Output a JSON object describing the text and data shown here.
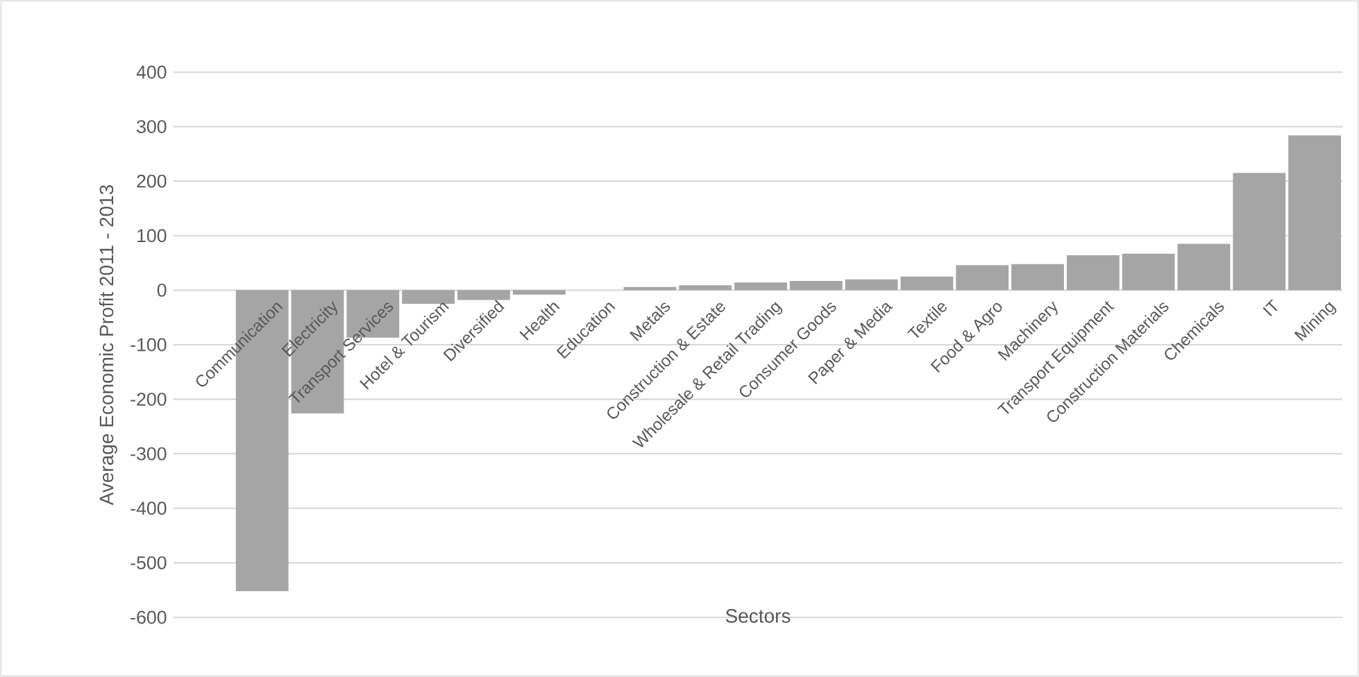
{
  "chart_data": {
    "type": "bar",
    "xlabel": "Sectors",
    "ylabel": "Average Economic Profit  2011 - 2013",
    "categories": [
      "Communication",
      "Electricity",
      "Transport Services",
      "Hotel & Tourism",
      "Diversified",
      "Health",
      "Education",
      "Metals",
      "Construction & Estate",
      "Wholesale & Retail Trading",
      "Consumer Goods",
      "Paper & Media",
      "Textile",
      "Food & Agro",
      "Machinery",
      "Transport Equipment",
      "Construction Materials",
      "Chemicals",
      "IT",
      "Mining"
    ],
    "values": [
      -552,
      -226,
      -87,
      -25,
      -18,
      -8,
      0,
      6,
      9,
      14,
      17,
      20,
      25,
      46,
      48,
      64,
      67,
      85,
      215,
      284
    ],
    "color": "#a5a5a5",
    "ylim": [
      -600,
      400
    ],
    "yticks": [
      -600,
      -500,
      -400,
      -300,
      -200,
      -100,
      0,
      100,
      200,
      300,
      400
    ],
    "grid": "y"
  }
}
